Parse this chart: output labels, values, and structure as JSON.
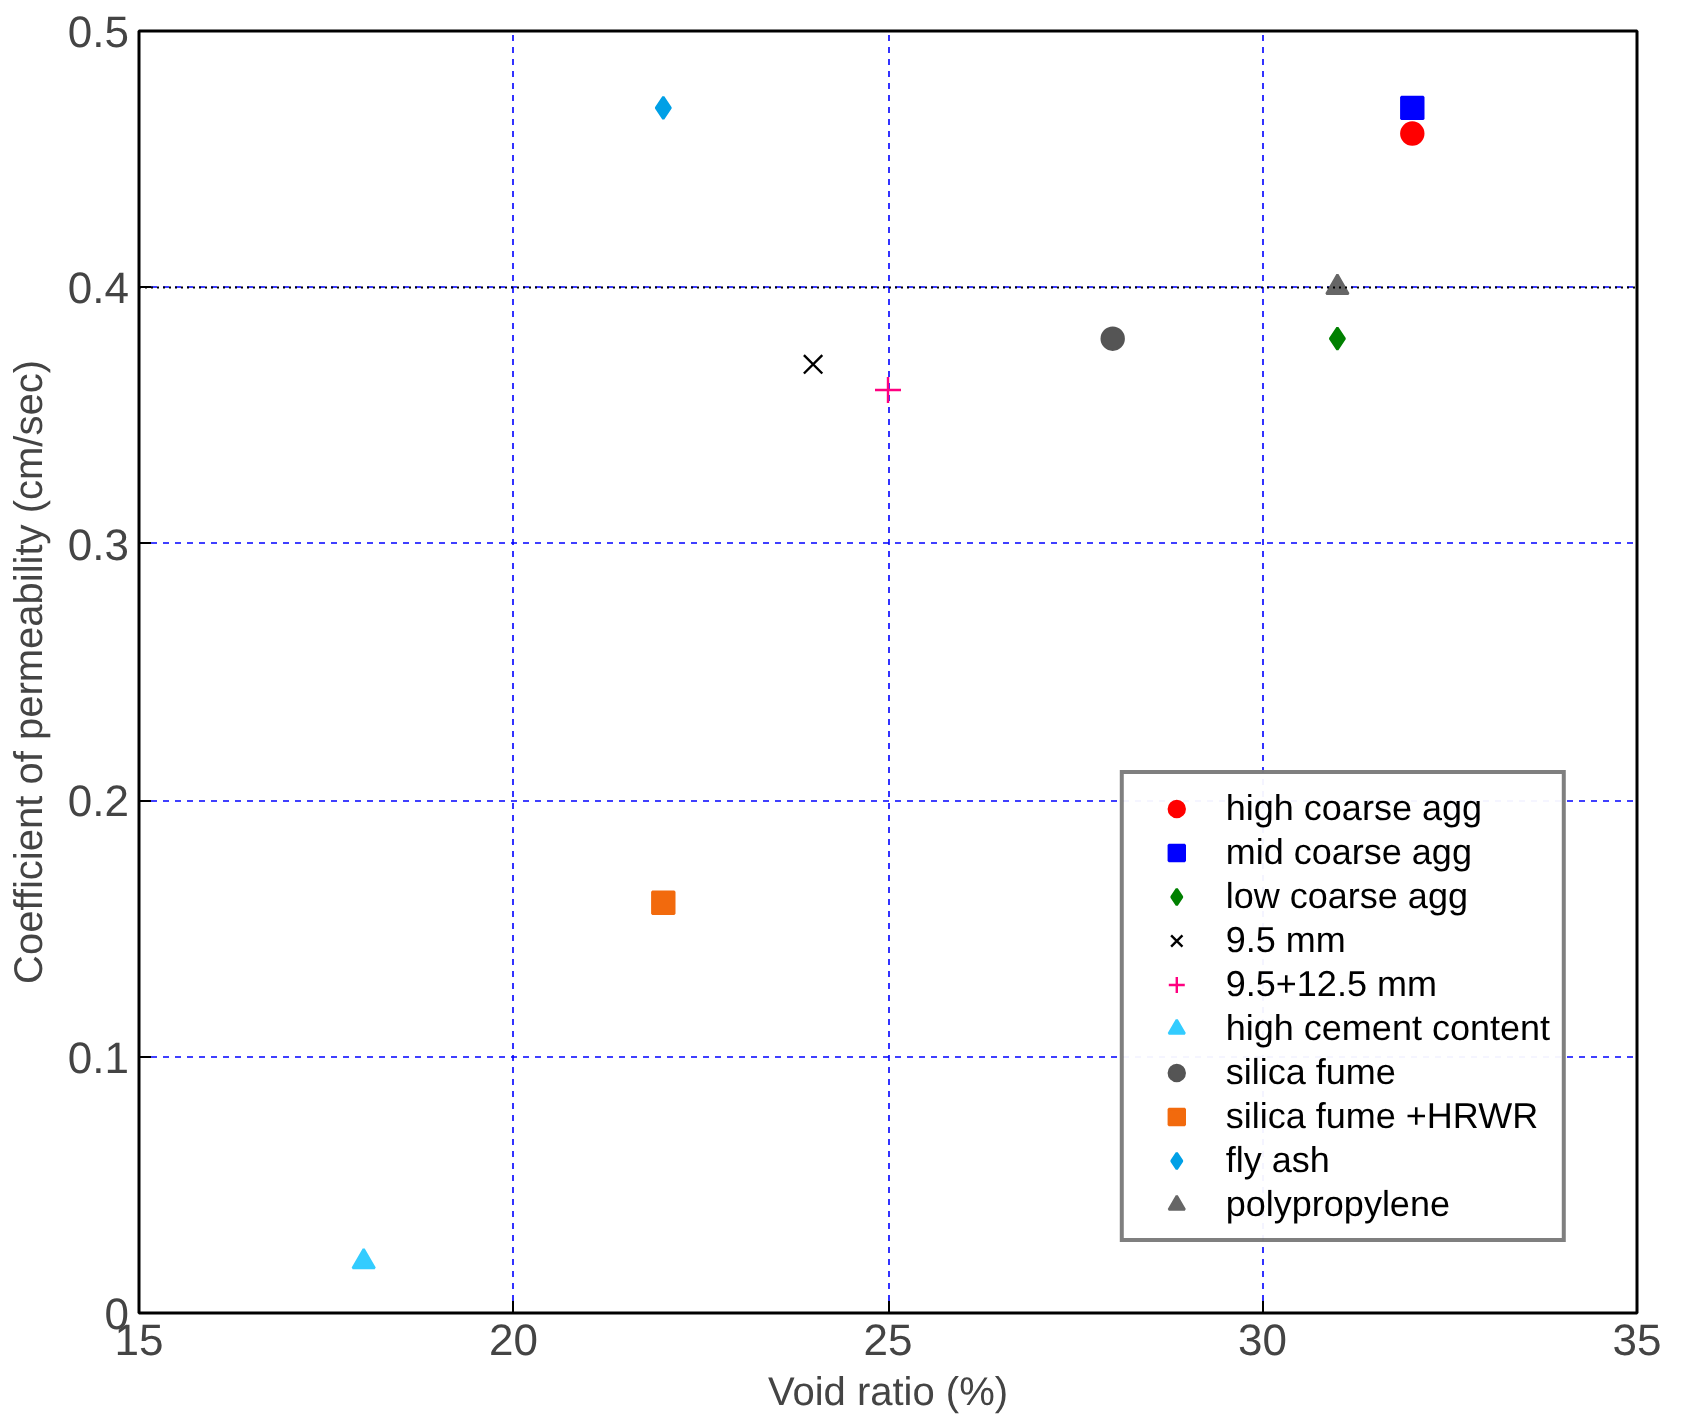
{
  "chart_data": {
    "type": "scatter",
    "xlabel": "Void ratio (%)",
    "ylabel": "Coefficient of permeability (cm/sec)",
    "xlim": [
      15,
      35
    ],
    "xticks": [
      15,
      20,
      25,
      30,
      35
    ],
    "ylim": [
      0,
      0.5
    ],
    "yticks": [
      0,
      0.1,
      0.2,
      0.3,
      0.4,
      0.5
    ],
    "grid": true,
    "legend": "bottom right",
    "ref_lines": [
      {
        "axis": "y",
        "value": 0.4,
        "label": null,
        "color": "#000000",
        "line_style": "dotted"
      }
    ],
    "series": [
      {
        "name": "high coarse agg",
        "color": "#ff0000",
        "marker": "circle",
        "x": [
          32
        ],
        "values": [
          0.46
        ]
      },
      {
        "name": "mid coarse agg",
        "color": "#0000ff",
        "marker": "square",
        "x": [
          32
        ],
        "values": [
          0.47
        ]
      },
      {
        "name": "low coarse agg",
        "color": "#008000",
        "marker": "diamond",
        "x": [
          31
        ],
        "values": [
          0.38
        ]
      },
      {
        "name": "9.5 mm",
        "color": "#000000",
        "marker": "cross",
        "x": [
          24
        ],
        "values": [
          0.37
        ]
      },
      {
        "name": "9.5+12.5 mm",
        "color": "#ff0080",
        "marker": "plus",
        "x": [
          25
        ],
        "values": [
          0.36
        ]
      },
      {
        "name": "high cement content",
        "color": "#33ccff",
        "marker": "triangle",
        "x": [
          18
        ],
        "values": [
          0.02
        ]
      },
      {
        "name": "silica fume",
        "color": "#555555",
        "marker": "circle",
        "x": [
          28
        ],
        "values": [
          0.38
        ]
      },
      {
        "name": "silica fume +HRWR",
        "color": "#f26a0d",
        "marker": "square",
        "x": [
          22
        ],
        "values": [
          0.16
        ]
      },
      {
        "name": "fly ash",
        "color": "#00a0e6",
        "marker": "diamond",
        "x": [
          22
        ],
        "values": [
          0.47
        ]
      },
      {
        "name": "polypropylene",
        "color": "#666666",
        "marker": "triangle",
        "x": [
          31
        ],
        "values": [
          0.4
        ]
      }
    ]
  }
}
